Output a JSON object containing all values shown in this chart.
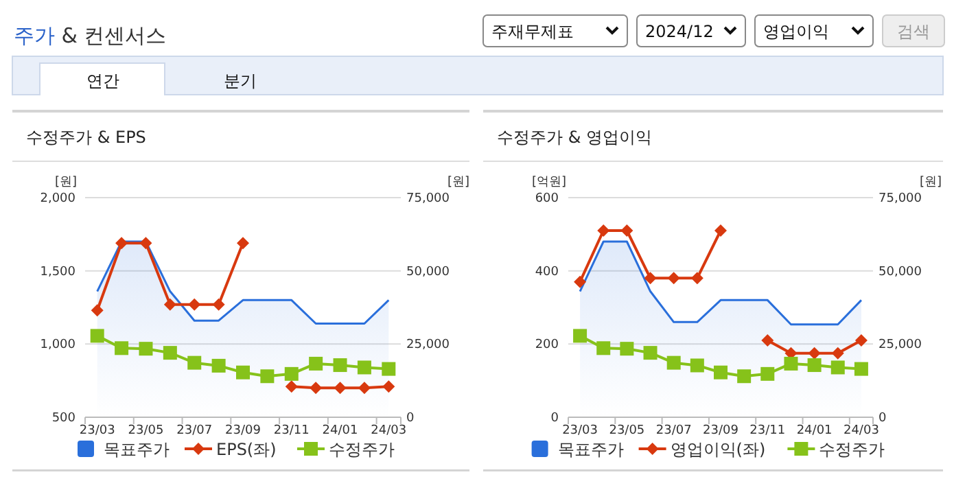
{
  "chart_data": [
    {
      "type": "other",
      "title": "주가 & 컨센서스",
      "annotations": [
        "주재무제표",
        "2024/12",
        "영업이익",
        "검색",
        "연간",
        "분기"
      ]
    },
    {
      "type": "line",
      "title": "수정주가 & EPS",
      "ylabel": "[원]",
      "y2label": "[원]",
      "categories": [
        "23/03",
        null,
        "23/05",
        null,
        "23/07",
        null,
        "23/09",
        null,
        "23/11",
        null,
        "24/01",
        null,
        "24/03"
      ],
      "ylim": [
        500,
        2000
      ],
      "yticks": [
        500,
        {
          "value": 1000,
          "label": "1,000"
        },
        {
          "value": 1500,
          "label": "1,500"
        },
        {
          "value": 2000,
          "label": "2,000"
        }
      ],
      "y2lim": [
        0,
        75000
      ],
      "y2ticks": [
        0,
        {
          "value": 25000,
          "label": "25,000"
        },
        {
          "value": 50000,
          "label": "50,000"
        },
        {
          "value": 75000,
          "label": "75,000"
        }
      ],
      "grid": "y",
      "legend": "bottom",
      "series": [
        {
          "name": "목표주가",
          "type": "area",
          "axis": "y2",
          "color": "#2a6fdb",
          "values": [
            43000,
            60000,
            60000,
            43000,
            33000,
            33000,
            40000,
            40000,
            40000,
            32000,
            32000,
            32000,
            40000
          ]
        },
        {
          "name": "EPS(좌)",
          "type": "line",
          "axis": "y",
          "color": "#d8390f",
          "marker": "diamond",
          "values": [
            1230,
            1690,
            1690,
            1270,
            1270,
            1270,
            1690,
            null,
            710,
            700,
            700,
            700,
            710
          ]
        },
        {
          "name": "수정주가",
          "type": "line",
          "axis": "y2",
          "color": "#86c21a",
          "marker": "square",
          "values": [
            27800,
            23600,
            23400,
            22000,
            18600,
            17600,
            15300,
            14000,
            14800,
            18300,
            17800,
            17000,
            16500
          ]
        }
      ]
    },
    {
      "type": "line",
      "title": "수정주가 & 영업이익",
      "ylabel": "[억원]",
      "y2label": "[원]",
      "categories": [
        "23/03",
        null,
        "23/05",
        null,
        "23/07",
        null,
        "23/09",
        null,
        "23/11",
        null,
        "24/01",
        null,
        "24/03"
      ],
      "ylim": [
        0,
        600
      ],
      "yticks": [
        0,
        200,
        400,
        600
      ],
      "y2lim": [
        0,
        75000
      ],
      "y2ticks": [
        0,
        {
          "value": 25000,
          "label": "25,000"
        },
        {
          "value": 50000,
          "label": "50,000"
        },
        {
          "value": 75000,
          "label": "75,000"
        }
      ],
      "grid": "y",
      "legend": "bottom",
      "series": [
        {
          "name": "목표주가",
          "type": "area",
          "axis": "y2",
          "color": "#2a6fdb",
          "values": [
            43000,
            60000,
            60000,
            43000,
            32500,
            32500,
            40000,
            40000,
            40000,
            31700,
            31700,
            31700,
            40000
          ]
        },
        {
          "name": "영업이익(좌)",
          "type": "line",
          "axis": "y",
          "color": "#d8390f",
          "marker": "diamond",
          "values": [
            370,
            510,
            510,
            380,
            380,
            380,
            510,
            null,
            210,
            175,
            175,
            175,
            210
          ]
        },
        {
          "name": "수정주가",
          "type": "line",
          "axis": "y2",
          "color": "#86c21a",
          "marker": "square",
          "values": [
            27800,
            23600,
            23400,
            22000,
            18600,
            17700,
            15300,
            14000,
            14800,
            18300,
            17800,
            17000,
            16500
          ]
        }
      ]
    }
  ]
}
